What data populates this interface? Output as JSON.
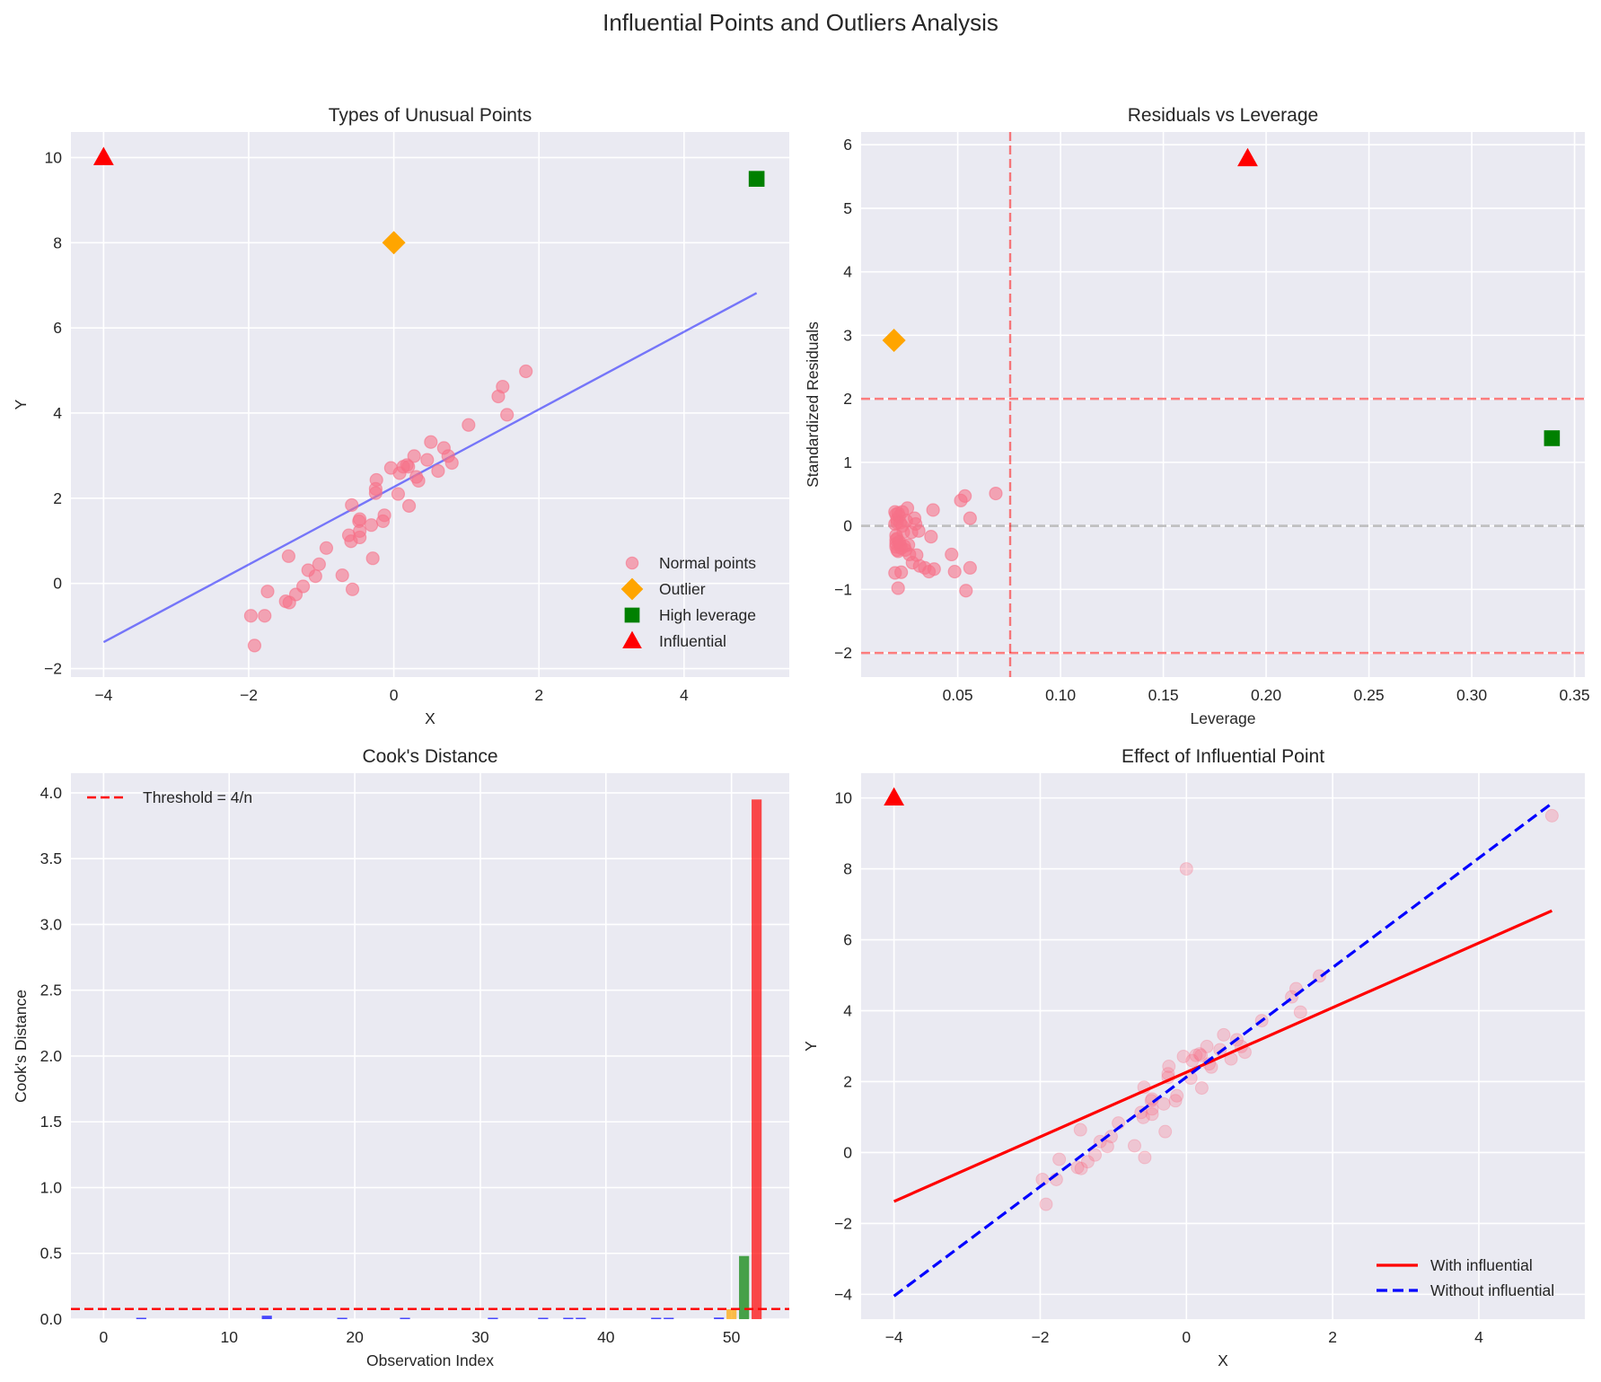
{
  "figure": {
    "title": "Influential Points and Outliers Analysis"
  },
  "colors": {
    "normal": "#f77189",
    "outlier": "#ffa500",
    "high_leverage": "#008000",
    "influential": "#ff0000",
    "fit_line": "#0000ff",
    "threshold": "#ff0000",
    "zero_line": "#808080",
    "background": "#eaeaf2"
  },
  "chart_data": [
    {
      "id": "types",
      "type": "scatter",
      "title": "Types of Unusual Points",
      "xlabel": "X",
      "ylabel": "Y",
      "xlim": [
        -4.45,
        5.45
      ],
      "ylim": [
        -2.2,
        10.6
      ],
      "xticks": [
        -4,
        -2,
        0,
        2,
        4
      ],
      "xtick_labels": [
        "−4",
        "−2",
        "0",
        "2",
        "4"
      ],
      "yticks": [
        -2,
        0,
        2,
        4,
        6,
        8,
        10
      ],
      "ytick_labels": [
        "−2",
        "0",
        "2",
        "4",
        "6",
        "8",
        "10"
      ],
      "grid": true,
      "legend_position": "lower-right",
      "series": [
        {
          "name": "Normal points",
          "marker": "circle",
          "color_key": "normal",
          "alpha": 0.6,
          "points": [
            [
              -1.97,
              -0.76
            ],
            [
              -1.92,
              -1.46
            ],
            [
              -1.78,
              -0.76
            ],
            [
              -1.74,
              -0.19
            ],
            [
              -1.49,
              -0.42
            ],
            [
              -1.44,
              -0.45
            ],
            [
              -1.45,
              0.64
            ],
            [
              -1.35,
              -0.26
            ],
            [
              -1.25,
              -0.07
            ],
            [
              -1.18,
              0.31
            ],
            [
              -1.08,
              0.17
            ],
            [
              -1.03,
              0.45
            ],
            [
              -0.93,
              0.83
            ],
            [
              -0.71,
              0.19
            ],
            [
              -0.62,
              1.13
            ],
            [
              -0.59,
              0.99
            ],
            [
              -0.58,
              1.84
            ],
            [
              -0.57,
              -0.14
            ],
            [
              -0.48,
              1.46
            ],
            [
              -0.47,
              1.51
            ],
            [
              -0.47,
              1.23
            ],
            [
              -0.47,
              1.08
            ],
            [
              -0.31,
              1.37
            ],
            [
              -0.29,
              0.59
            ],
            [
              -0.25,
              2.22
            ],
            [
              -0.25,
              2.12
            ],
            [
              -0.24,
              2.43
            ],
            [
              -0.15,
              1.46
            ],
            [
              -0.13,
              1.6
            ],
            [
              -0.04,
              2.71
            ],
            [
              0.06,
              2.1
            ],
            [
              0.08,
              2.59
            ],
            [
              0.13,
              2.74
            ],
            [
              0.18,
              2.78
            ],
            [
              0.21,
              1.82
            ],
            [
              0.28,
              2.99
            ],
            [
              0.31,
              2.5
            ],
            [
              0.34,
              2.41
            ],
            [
              0.46,
              2.9
            ],
            [
              0.51,
              3.32
            ],
            [
              0.61,
              2.64
            ],
            [
              0.69,
              3.18
            ],
            [
              0.75,
              2.99
            ],
            [
              0.8,
              2.83
            ],
            [
              1.03,
              3.72
            ],
            [
              1.44,
              4.39
            ],
            [
              1.5,
              4.62
            ],
            [
              1.56,
              3.96
            ],
            [
              1.82,
              4.98
            ],
            [
              0.2,
              2.74
            ]
          ]
        },
        {
          "name": "Outlier",
          "marker": "diamond",
          "color_key": "outlier",
          "points": [
            [
              0,
              8
            ]
          ]
        },
        {
          "name": "High leverage",
          "marker": "square",
          "color_key": "high_leverage",
          "points": [
            [
              5,
              9.5
            ]
          ]
        },
        {
          "name": "Influential",
          "marker": "triangle",
          "color_key": "influential",
          "points": [
            [
              -4,
              10
            ]
          ]
        }
      ],
      "lines": [
        {
          "name": "fit",
          "x": [
            -4,
            5
          ],
          "y": [
            -1.38,
            6.82
          ],
          "color_key": "fit_line",
          "alpha": 0.5,
          "style": "solid"
        }
      ]
    },
    {
      "id": "resid",
      "type": "scatter",
      "title": "Residuals vs Leverage",
      "xlabel": "Leverage",
      "ylabel": "Standardized Residuals",
      "xlim": [
        0.003,
        0.355
      ],
      "ylim": [
        -2.38,
        6.2
      ],
      "xticks": [
        0.05,
        0.1,
        0.15,
        0.2,
        0.25,
        0.3,
        0.35
      ],
      "xtick_labels": [
        "0.05",
        "0.10",
        "0.15",
        "0.20",
        "0.25",
        "0.30",
        "0.35"
      ],
      "yticks": [
        -2,
        -1,
        0,
        1,
        2,
        3,
        4,
        5,
        6
      ],
      "ytick_labels": [
        "−2",
        "−1",
        "0",
        "1",
        "2",
        "3",
        "4",
        "5",
        "6"
      ],
      "grid": true,
      "series": [
        {
          "name": "Normal points",
          "marker": "circle",
          "color_key": "normal",
          "alpha": 0.6,
          "points": [
            [
              0.0195,
              0.22
            ],
            [
              0.02,
              0.18
            ],
            [
              0.0205,
              0.05
            ],
            [
              0.0195,
              0.03
            ],
            [
              0.02,
              -0.15
            ],
            [
              0.02,
              -0.22
            ],
            [
              0.02,
              -0.28
            ],
            [
              0.02,
              -0.33
            ],
            [
              0.0205,
              -0.38
            ],
            [
              0.021,
              -0.4
            ],
            [
              0.0205,
              0.1
            ],
            [
              0.021,
              0.2
            ],
            [
              0.0215,
              0.15
            ],
            [
              0.022,
              0.05
            ],
            [
              0.022,
              -0.3
            ],
            [
              0.0225,
              -0.35
            ],
            [
              0.023,
              0.22
            ],
            [
              0.0235,
              -0.1
            ],
            [
              0.024,
              -0.32
            ],
            [
              0.0195,
              -0.74
            ],
            [
              0.0225,
              -0.73
            ],
            [
              0.021,
              -0.98
            ],
            [
              0.025,
              0.08
            ],
            [
              0.0255,
              0.28
            ],
            [
              0.026,
              -0.3
            ],
            [
              0.0265,
              -0.45
            ],
            [
              0.0275,
              -0.1
            ],
            [
              0.028,
              -0.58
            ],
            [
              0.029,
              0.12
            ],
            [
              0.0295,
              0.03
            ],
            [
              0.03,
              -0.46
            ],
            [
              0.031,
              -0.08
            ],
            [
              0.0315,
              -0.63
            ],
            [
              0.034,
              -0.66
            ],
            [
              0.036,
              -0.72
            ],
            [
              0.037,
              -0.17
            ],
            [
              0.038,
              0.25
            ],
            [
              0.0385,
              -0.68
            ],
            [
              0.047,
              -0.45
            ],
            [
              0.0485,
              -0.72
            ],
            [
              0.0515,
              0.4
            ],
            [
              0.0535,
              0.47
            ],
            [
              0.054,
              -1.02
            ],
            [
              0.056,
              0.12
            ],
            [
              0.056,
              -0.66
            ],
            [
              0.0685,
              0.51
            ],
            [
              0.0205,
              -0.2
            ],
            [
              0.0215,
              -0.25
            ],
            [
              0.023,
              0.0
            ],
            [
              0.0245,
              -0.38
            ]
          ]
        },
        {
          "name": "Outlier",
          "marker": "diamond",
          "color_key": "outlier",
          "points": [
            [
              0.019,
              2.92
            ]
          ]
        },
        {
          "name": "High leverage",
          "marker": "square",
          "color_key": "high_leverage",
          "points": [
            [
              0.339,
              1.38
            ]
          ]
        },
        {
          "name": "Influential",
          "marker": "triangle",
          "color_key": "influential",
          "points": [
            [
              0.191,
              5.78
            ]
          ]
        }
      ],
      "reference_lines": [
        {
          "orientation": "horizontal",
          "value": 0,
          "color_key": "zero_line",
          "alpha": 0.5,
          "style": "dashed"
        },
        {
          "orientation": "horizontal",
          "value": 2,
          "color_key": "threshold",
          "alpha": 0.5,
          "style": "dashed"
        },
        {
          "orientation": "horizontal",
          "value": -2,
          "color_key": "threshold",
          "alpha": 0.5,
          "style": "dashed"
        },
        {
          "orientation": "vertical",
          "value": 0.0755,
          "color_key": "threshold",
          "alpha": 0.5,
          "style": "dashed"
        }
      ]
    },
    {
      "id": "cooks",
      "type": "bar",
      "title": "Cook's Distance",
      "xlabel": "Observation Index",
      "ylabel": "Cook's Distance",
      "xlim": [
        -2.6,
        54.6
      ],
      "ylim": [
        0,
        4.15
      ],
      "xticks": [
        0,
        10,
        20,
        30,
        40,
        50
      ],
      "xtick_labels": [
        "0",
        "10",
        "20",
        "30",
        "40",
        "50"
      ],
      "yticks": [
        0,
        0.5,
        1.0,
        1.5,
        2.0,
        2.5,
        3.0,
        3.5,
        4.0
      ],
      "ytick_labels": [
        "0.0",
        "0.5",
        "1.0",
        "1.5",
        "2.0",
        "2.5",
        "3.0",
        "3.5",
        "4.0"
      ],
      "grid": true,
      "legend_position": "upper-left",
      "bars": [
        {
          "index": 3,
          "value": 0.004,
          "color_key": "fit_line"
        },
        {
          "index": 13,
          "value": 0.026,
          "color_key": "fit_line"
        },
        {
          "index": 19,
          "value": 0.004,
          "color_key": "fit_line"
        },
        {
          "index": 24,
          "value": 0.004,
          "color_key": "fit_line"
        },
        {
          "index": 31,
          "value": 0.004,
          "color_key": "fit_line"
        },
        {
          "index": 35,
          "value": 0.004,
          "color_key": "fit_line"
        },
        {
          "index": 37,
          "value": 0.004,
          "color_key": "fit_line"
        },
        {
          "index": 38,
          "value": 0.004,
          "color_key": "fit_line"
        },
        {
          "index": 44,
          "value": 0.004,
          "color_key": "fit_line"
        },
        {
          "index": 45,
          "value": 0.004,
          "color_key": "fit_line"
        },
        {
          "index": 49,
          "value": 0.012,
          "color_key": "fit_line"
        },
        {
          "index": 50,
          "value": 0.075,
          "color_key": "outlier"
        },
        {
          "index": 51,
          "value": 0.48,
          "color_key": "high_leverage"
        },
        {
          "index": 52,
          "value": 3.95,
          "color_key": "influential"
        }
      ],
      "threshold": {
        "label": "Threshold = 4/n",
        "value": 0.0769
      }
    },
    {
      "id": "effect",
      "type": "scatter",
      "title": "Effect of Influential Point",
      "xlabel": "X",
      "ylabel": "Y",
      "xlim": [
        -4.45,
        5.45
      ],
      "ylim": [
        -4.7,
        10.7
      ],
      "xticks": [
        -4,
        -2,
        0,
        2,
        4
      ],
      "xtick_labels": [
        "−4",
        "−2",
        "0",
        "2",
        "4"
      ],
      "yticks": [
        -4,
        -2,
        0,
        2,
        4,
        6,
        8,
        10
      ],
      "ytick_labels": [
        "−4",
        "−2",
        "0",
        "2",
        "4",
        "6",
        "8",
        "10"
      ],
      "grid": true,
      "legend_position": "lower-right",
      "points_alpha": 0.3,
      "extra_points": [
        [
          0,
          8
        ],
        [
          5,
          9.5
        ]
      ],
      "influential_point": [
        -4,
        10
      ],
      "lines": [
        {
          "name": "With influential",
          "x": [
            -4,
            5
          ],
          "y": [
            -1.38,
            6.82
          ],
          "color_key": "influential",
          "style": "solid"
        },
        {
          "name": "Without influential",
          "x": [
            -4,
            5
          ],
          "y": [
            -4.05,
            9.85
          ],
          "color_key": "fit_line",
          "style": "dashed"
        }
      ]
    }
  ]
}
